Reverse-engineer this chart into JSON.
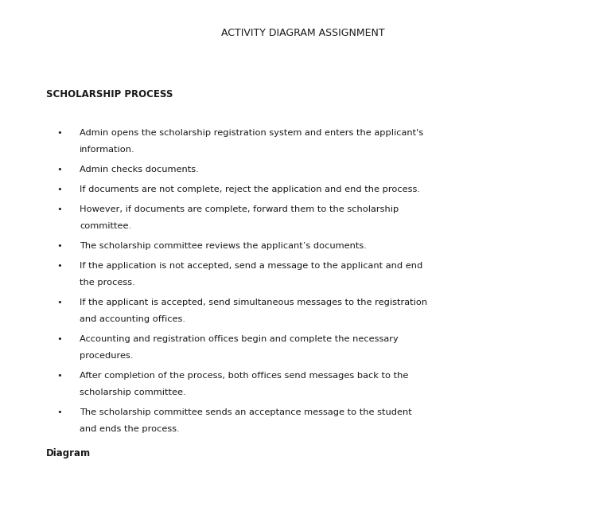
{
  "title": "ACTIVITY DIAGRAM ASSIGNMENT",
  "section_heading": "SCHOLARSHIP PROCESS",
  "bullet_points": [
    "Admin opens the scholarship registration system and enters the applicant's",
    "information.",
    "Admin checks documents.",
    "If documents are not complete, reject the application and end the process.",
    "However, if documents are complete, forward them to the scholarship",
    "committee.",
    "The scholarship committee reviews the applicant’s documents.",
    "If the application is not accepted, send a message to the applicant and end",
    "the process.",
    "If the applicant is accepted, send simultaneous messages to the registration",
    "and accounting offices.",
    "Accounting and registration offices begin and complete the necessary",
    "procedures.",
    "After completion of the process, both offices send messages back to the",
    "scholarship committee.",
    "The scholarship committee sends an acceptance message to the student",
    "and ends the process."
  ],
  "bullet_groups": [
    [
      0,
      1
    ],
    [
      2
    ],
    [
      3
    ],
    [
      4,
      5
    ],
    [
      6
    ],
    [
      7,
      8
    ],
    [
      9,
      10
    ],
    [
      11,
      12
    ],
    [
      13,
      14
    ],
    [
      15,
      16
    ]
  ],
  "footer": "Diagram",
  "bg_color": "#ffffff",
  "text_color": "#1a1a1a",
  "title_fontsize": 9.0,
  "heading_fontsize": 8.5,
  "body_fontsize": 8.2,
  "footer_fontsize": 8.5
}
